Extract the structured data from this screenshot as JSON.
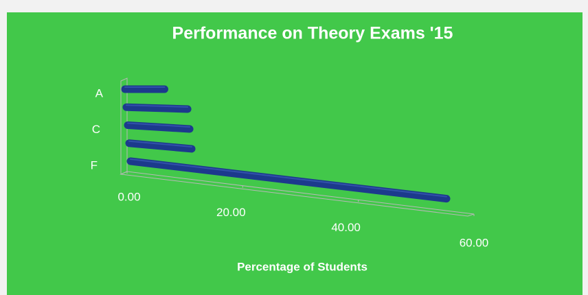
{
  "chart_data": {
    "type": "bar3d",
    "orientation": "horizontal",
    "title": "Performance on Theory Exams '15",
    "x_label": "Percentage of Students",
    "categories": [
      "A",
      null,
      "C",
      null,
      "F"
    ],
    "values": [
      7.5,
      11.5,
      11.5,
      11.5,
      57.5
    ],
    "color": "#1c3a8c",
    "xlim": [
      0,
      60
    ],
    "xticks": [
      {
        "value": 0,
        "label": "0.00"
      },
      {
        "value": 20,
        "label": "20.00"
      },
      {
        "value": 40,
        "label": "40.00"
      },
      {
        "value": 60,
        "label": "60.00"
      }
    ],
    "grid": false
  }
}
